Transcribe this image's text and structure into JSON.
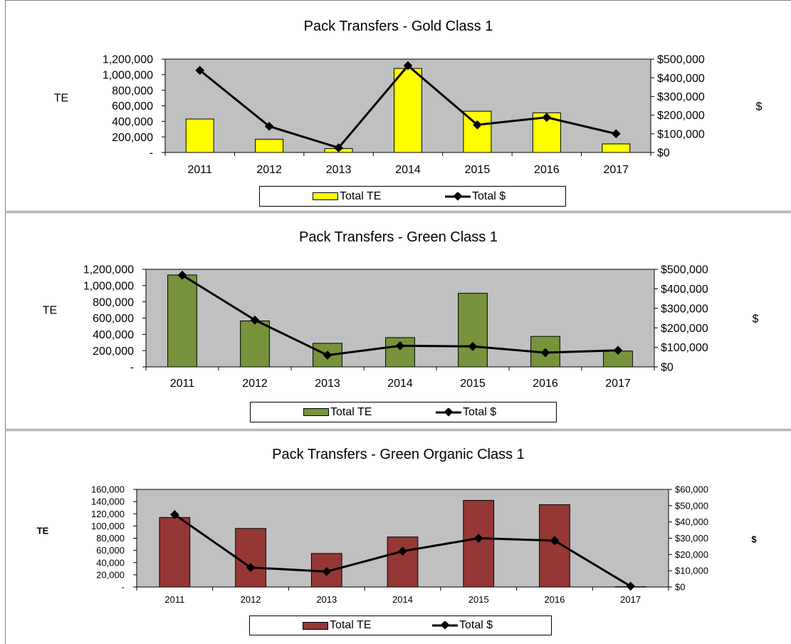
{
  "chart_data": [
    {
      "type": "bar",
      "title": "Pack Transfers - Gold Class 1",
      "categories": [
        "2011",
        "2012",
        "2013",
        "2014",
        "2015",
        "2016",
        "2017"
      ],
      "series": [
        {
          "name": "Total TE",
          "type": "bar",
          "axis": "left",
          "color": "#ffff00",
          "values": [
            430000,
            170000,
            50000,
            1080000,
            530000,
            510000,
            110000
          ]
        },
        {
          "name": "Total $",
          "type": "line",
          "axis": "right",
          "color": "#000000",
          "values": [
            440000,
            140000,
            25000,
            465000,
            148000,
            188000,
            100000
          ]
        }
      ],
      "ylabel": "TE",
      "y2label": "$",
      "ylim": [
        0,
        1200000
      ],
      "y2lim": [
        0,
        500000
      ],
      "yticks": [
        "-",
        "200,000",
        "400,000",
        "600,000",
        "800,000",
        "1,000,000",
        "1,200,000"
      ],
      "y2ticks": [
        "$0",
        "$100,000",
        "$200,000",
        "$300,000",
        "$400,000",
        "$500,000"
      ],
      "legend": [
        "Total TE",
        "Total $"
      ],
      "legend_position": "bottom",
      "plot_background": "#c0c0c0",
      "grid": false
    },
    {
      "type": "bar",
      "title": "Pack Transfers - Green Class 1",
      "categories": [
        "2011",
        "2012",
        "2013",
        "2014",
        "2015",
        "2016",
        "2017"
      ],
      "series": [
        {
          "name": "Total TE",
          "type": "bar",
          "axis": "left",
          "color": "#77933c",
          "values": [
            1130000,
            565000,
            290000,
            360000,
            905000,
            375000,
            195000
          ]
        },
        {
          "name": "Total $",
          "type": "line",
          "axis": "right",
          "color": "#000000",
          "values": [
            470000,
            240000,
            60000,
            108000,
            105000,
            73000,
            85000
          ]
        }
      ],
      "ylabel": "TE",
      "y2label": "$",
      "ylim": [
        0,
        1200000
      ],
      "y2lim": [
        0,
        500000
      ],
      "yticks": [
        "-",
        "200,000",
        "400,000",
        "600,000",
        "800,000",
        "1,000,000",
        "1,200,000"
      ],
      "y2ticks": [
        "$0",
        "$100,000",
        "$200,000",
        "$300,000",
        "$400,000",
        "$500,000"
      ],
      "legend": [
        "Total TE",
        "Total $"
      ],
      "legend_position": "bottom",
      "plot_background": "#c0c0c0",
      "grid": false
    },
    {
      "type": "bar",
      "title": "Pack Transfers - Green Organic Class 1",
      "categories": [
        "2011",
        "2012",
        "2013",
        "2014",
        "2015",
        "2016",
        "2017"
      ],
      "series": [
        {
          "name": "Total TE",
          "type": "bar",
          "axis": "left",
          "color": "#953735",
          "values": [
            114000,
            96000,
            55000,
            82000,
            142000,
            135000,
            500
          ]
        },
        {
          "name": "Total $",
          "type": "line",
          "axis": "right",
          "color": "#000000",
          "values": [
            44500,
            12000,
            9500,
            22000,
            30000,
            28500,
            500
          ]
        }
      ],
      "ylabel": "TE",
      "y2label": "$",
      "ylim": [
        0,
        160000
      ],
      "y2lim": [
        0,
        60000
      ],
      "yticks": [
        "-",
        "20,000",
        "40,000",
        "60,000",
        "80,000",
        "100,000",
        "120,000",
        "140,000",
        "160,000"
      ],
      "y2ticks": [
        "$0",
        "$10,000",
        "$20,000",
        "$30,000",
        "$40,000",
        "$50,000",
        "$60,000"
      ],
      "legend": [
        "Total TE",
        "Total $"
      ],
      "legend_position": "bottom",
      "plot_background": "#c0c0c0",
      "grid": false
    }
  ]
}
